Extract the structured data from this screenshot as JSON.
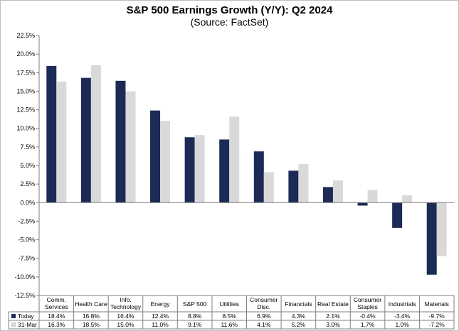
{
  "chart_data": {
    "type": "bar",
    "title": "S&P 500 Earnings Growth (Y/Y): Q2 2024",
    "subtitle": "(Source: FactSet)",
    "categories": [
      [
        "Comm.",
        "Services"
      ],
      [
        "Health Care"
      ],
      [
        "Info.",
        "Technology"
      ],
      [
        "Energy"
      ],
      [
        "S&P 500"
      ],
      [
        "Utilities"
      ],
      [
        "Consumer",
        "Disc."
      ],
      [
        "Financials"
      ],
      [
        "Real Estate"
      ],
      [
        "Consumer",
        "Staples"
      ],
      [
        "Industrials"
      ],
      [
        "Materials"
      ]
    ],
    "series": [
      {
        "name": "Today",
        "color": "#1c2a56",
        "values": [
          18.4,
          16.8,
          16.4,
          12.4,
          8.8,
          8.5,
          6.9,
          4.3,
          2.1,
          -0.4,
          -3.4,
          -9.7
        ]
      },
      {
        "name": "31-Mar",
        "color": "#d9d9d9",
        "values": [
          16.3,
          18.5,
          15.0,
          11.0,
          9.1,
          11.6,
          4.1,
          5.2,
          3.0,
          1.7,
          1.0,
          -7.2
        ]
      }
    ],
    "ylim": [
      -12.5,
      22.5
    ],
    "ytick_step": 2.5,
    "ytick_labels": [
      "22.5%",
      "20.0%",
      "17.5%",
      "15.0%",
      "12.5%",
      "10.0%",
      "7.5%",
      "5.0%",
      "2.5%",
      "0.0%",
      "-2.5%",
      "-5.0%",
      "-7.5%",
      "-10.0%",
      "-12.5%"
    ],
    "table_values": [
      [
        "18.4%",
        "16.8%",
        "16.4%",
        "12.4%",
        "8.8%",
        "8.5%",
        "6.9%",
        "4.3%",
        "2.1%",
        "-0.4%",
        "-3.4%",
        "-9.7%"
      ],
      [
        "16.3%",
        "18.5%",
        "15.0%",
        "11.0%",
        "9.1%",
        "11.6%",
        "4.1%",
        "5.2%",
        "3.0%",
        "1.7%",
        "1.0%",
        "-7.2%"
      ]
    ],
    "grid": false,
    "legend": "data-table-left"
  }
}
